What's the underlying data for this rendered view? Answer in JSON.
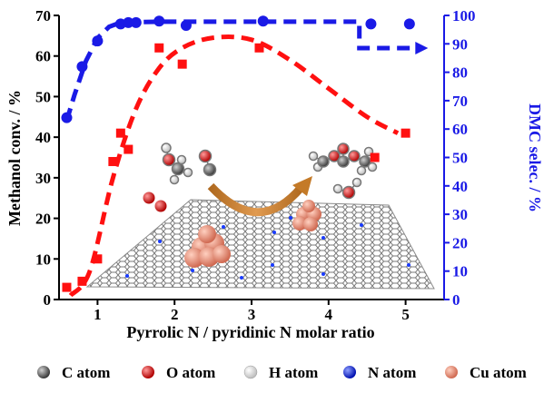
{
  "colors": {
    "left_axis": "#000000",
    "right_axis": "#1a1ae6",
    "methanol_series": "#ff1010",
    "dmc_series": "#1a1ae6",
    "arrow": "#c47a28",
    "graphene": "#7a7a7a",
    "cu": "#e88870",
    "nitrogen": "#1a3cff"
  },
  "chart_data": {
    "type": "scatter",
    "xlabel": "Pyrrolic N / pyridinic N molar ratio",
    "ylabel_left": "Methanol conv. / %",
    "ylabel_right": "DMC selec. / %",
    "xlim": [
      0.5,
      5.5
    ],
    "ylim_left": [
      0,
      70
    ],
    "ylim_right": [
      0,
      100
    ],
    "x_ticks": [
      1,
      2,
      3,
      4,
      5
    ],
    "y_left_ticks": [
      0,
      10,
      20,
      30,
      40,
      50,
      60,
      70
    ],
    "y_right_ticks": [
      0,
      10,
      20,
      30,
      40,
      50,
      60,
      70,
      80,
      90,
      100
    ],
    "grid": false,
    "series": [
      {
        "axis": "left",
        "marker": "square",
        "x": [
          0.6,
          0.8,
          1.0,
          1.2,
          1.3,
          1.4,
          1.8,
          2.1,
          3.1,
          4.6,
          5.0
        ],
        "y": [
          3,
          4.5,
          10,
          34,
          41,
          37,
          62,
          58,
          62,
          35,
          41
        ],
        "trend": [
          [
            0.65,
            1
          ],
          [
            0.9,
            7
          ],
          [
            1.2,
            30
          ],
          [
            1.5,
            47
          ],
          [
            1.8,
            57
          ],
          [
            2.1,
            62
          ],
          [
            2.5,
            64.5
          ],
          [
            3.0,
            64
          ],
          [
            3.5,
            59
          ],
          [
            4.0,
            52
          ],
          [
            4.5,
            45
          ],
          [
            4.9,
            41
          ]
        ]
      },
      {
        "axis": "right",
        "marker": "circle",
        "x": [
          0.6,
          0.8,
          1.0,
          1.3,
          1.4,
          1.5,
          1.8,
          2.15,
          3.15,
          4.55,
          5.05
        ],
        "y": [
          64,
          82,
          91,
          97,
          97.5,
          97.5,
          98,
          96.5,
          98,
          97,
          97
        ],
        "trend": [
          [
            0.6,
            63
          ],
          [
            0.7,
            72
          ],
          [
            0.85,
            84
          ],
          [
            1.0,
            92
          ],
          [
            1.15,
            96
          ],
          [
            1.3,
            97.5
          ],
          [
            1.8,
            97.8
          ],
          [
            3.0,
            97.8
          ],
          [
            4.4,
            97.8
          ],
          [
            4.4,
            88.5
          ],
          [
            5.15,
            88.5
          ]
        ]
      }
    ]
  },
  "legend": [
    {
      "label": "C atom",
      "color": "#4a4a4a"
    },
    {
      "label": "O atom",
      "color": "#dd1010"
    },
    {
      "label": "H atom",
      "color": "#f4f4f4"
    },
    {
      "label": "N atom",
      "color": "#1020e0"
    },
    {
      "label": "Cu atom",
      "color": "#e88870"
    }
  ]
}
